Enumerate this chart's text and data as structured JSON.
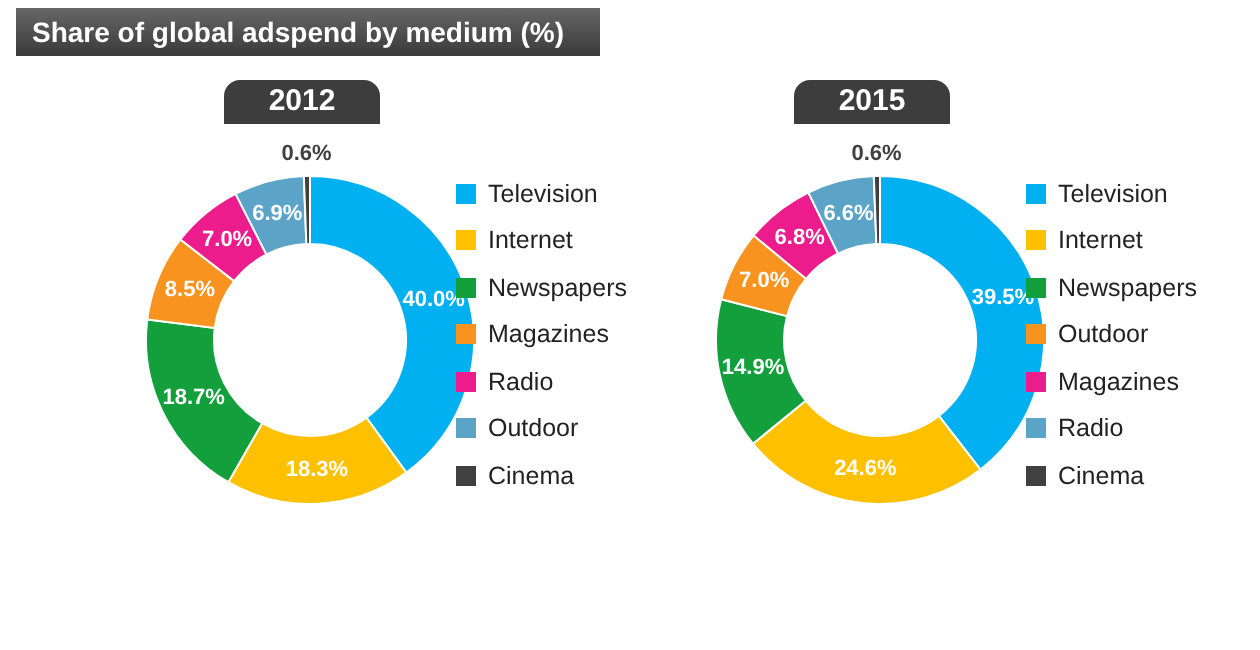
{
  "chart_data": [
    {
      "type": "donut",
      "title": "Share of global adspend by medium (%)",
      "subtitle": "2012",
      "categories": [
        "Television",
        "Internet",
        "Newspapers",
        "Magazines",
        "Radio",
        "Outdoor",
        "Cinema"
      ],
      "values": [
        40.0,
        18.3,
        18.7,
        8.5,
        7.0,
        6.9,
        0.6
      ],
      "colors": [
        "#00b0f0",
        "#ffc000",
        "#13a03c",
        "#f7931e",
        "#ec1c8c",
        "#5ba4c8",
        "#404040"
      ],
      "value_labels": [
        "40.0%",
        "18.3%",
        "18.7%",
        "8.5%",
        "7.0%",
        "6.9%",
        "0.6%"
      ],
      "legend": "right"
    },
    {
      "type": "donut",
      "subtitle": "2015",
      "categories": [
        "Television",
        "Internet",
        "Newspapers",
        "Outdoor",
        "Magazines",
        "Radio",
        "Cinema"
      ],
      "values": [
        39.5,
        24.6,
        14.9,
        7.0,
        6.8,
        6.6,
        0.6
      ],
      "colors": [
        "#00b0f0",
        "#ffc000",
        "#13a03c",
        "#f7931e",
        "#ec1c8c",
        "#5ba4c8",
        "#404040"
      ],
      "value_labels": [
        "39.5%",
        "24.6%",
        "14.9%",
        "7.0%",
        "6.8%",
        "6.6%",
        "0.6%"
      ],
      "legend": "right"
    }
  ]
}
